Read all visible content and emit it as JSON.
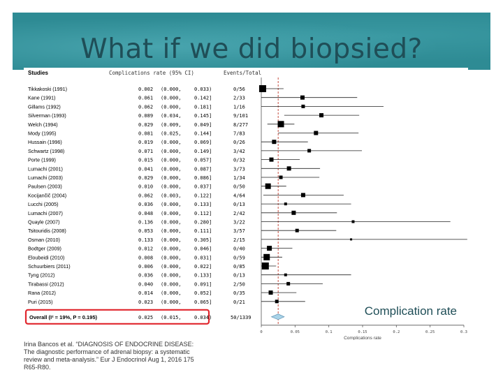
{
  "slide": {
    "title": "What if we did biopsied?",
    "caption": "Complication rate",
    "citation": "Irina Bancos et al. “DIAGNOSIS OF ENDOCRINE DISEASE: The diagnostic performance of adrenal biopsy: a systematic review and meta-analysis.” Eur J Endocrinol Aug 1, 2016 175 R65-R80."
  },
  "forest": {
    "col_studies": "Studies",
    "col_rate": "Complications rate (95% CI)",
    "col_events": "Events/Total",
    "rows": [
      {
        "study": "Tikkakoski (1991)",
        "rate": "0.002",
        "lo": "(0.000,",
        "hi": "0.033)",
        "events": "0/56",
        "est": 0.002,
        "size": 5
      },
      {
        "study": "Kane (1991)",
        "rate": "0.061",
        "lo": "(0.000,",
        "hi": "0.142]",
        "events": "2/33",
        "est": 0.061,
        "size": 3
      },
      {
        "study": "Gillams (1992)",
        "rate": "0.062",
        "lo": "(0.000,",
        "hi": "0.181]",
        "events": "1/16",
        "est": 0.062,
        "size": 2.5
      },
      {
        "study": "Silverman (1993)",
        "rate": "0.089",
        "lo": "(0.034,",
        "hi": "0.145]",
        "events": "9/101",
        "est": 0.089,
        "size": 3
      },
      {
        "study": "Welch (1994)",
        "rate": "0.029",
        "lo": "(0.009,",
        "hi": "0.049]",
        "events": "8/277",
        "est": 0.029,
        "size": 4.5
      },
      {
        "study": "Mody (1995)",
        "rate": "0.081",
        "lo": "(0.025,",
        "hi": "0.144]",
        "events": "7/83",
        "est": 0.081,
        "size": 3
      },
      {
        "study": "Hussain (1996)",
        "rate": "0.019",
        "lo": "(0.000,",
        "hi": "0.069]",
        "events": "0/26",
        "est": 0.019,
        "size": 3
      },
      {
        "study": "Schwartz (1998)",
        "rate": "0.071",
        "lo": "(0.000,",
        "hi": "0.149]",
        "events": "3/42",
        "est": 0.071,
        "size": 2.5
      },
      {
        "study": "Porte (1999)",
        "rate": "0.015",
        "lo": "(0.000,",
        "hi": "0.057]",
        "events": "0/32",
        "est": 0.015,
        "size": 3
      },
      {
        "study": "Lumachi (2001)",
        "rate": "0.041",
        "lo": "(0.000,",
        "hi": "0.087]",
        "events": "3/73",
        "est": 0.041,
        "size": 3
      },
      {
        "study": "Lumachi (2003)",
        "rate": "0.029",
        "lo": "(0.000,",
        "hi": "0.086]",
        "events": "1/34",
        "est": 0.029,
        "size": 2.5
      },
      {
        "study": "Paulsen (2003)",
        "rate": "0.010",
        "lo": "(0.000,",
        "hi": "0.037]",
        "events": "0/50",
        "est": 0.01,
        "size": 4
      },
      {
        "study": "Kocijančič (2004)",
        "rate": "0.062",
        "lo": "(0.003,",
        "hi": "0.122]",
        "events": "4/64",
        "est": 0.062,
        "size": 3
      },
      {
        "study": "Lucchi (2005)",
        "rate": "0.036",
        "lo": "(0.000,",
        "hi": "0.133]",
        "events": "0/13",
        "est": 0.036,
        "size": 2
      },
      {
        "study": "Lumachi (2007)",
        "rate": "0.048",
        "lo": "(0.000,",
        "hi": "0.112]",
        "events": "2/42",
        "est": 0.048,
        "size": 3
      },
      {
        "study": "Quayle (2007)",
        "rate": "0.136",
        "lo": "(0.000,",
        "hi": "0.280]",
        "events": "3/22",
        "est": 0.136,
        "size": 2
      },
      {
        "study": "Tsitouridis (2008)",
        "rate": "0.053",
        "lo": "(0.000,",
        "hi": "0.111]",
        "events": "3/57",
        "est": 0.053,
        "size": 2.5
      },
      {
        "study": "Osman (2010)",
        "rate": "0.133",
        "lo": "(0.000,",
        "hi": "0.305]",
        "events": "2/15",
        "est": 0.133,
        "size": 1.5
      },
      {
        "study": "Bodtger (2009)",
        "rate": "0.012",
        "lo": "(0.000,",
        "hi": "0.046]",
        "events": "0/40",
        "est": 0.012,
        "size": 3.5
      },
      {
        "study": "Eloubeidi (2010)",
        "rate": "0.008",
        "lo": "(0.000,",
        "hi": "0.031]",
        "events": "0/59",
        "est": 0.008,
        "size": 4.5
      },
      {
        "study": "Schuurbiers (2011)",
        "rate": "0.006",
        "lo": "(0.000,",
        "hi": "0.022]",
        "events": "0/85",
        "est": 0.006,
        "size": 5
      },
      {
        "study": "Tyng (2012)",
        "rate": "0.036",
        "lo": "(0.000,",
        "hi": "0.133]",
        "events": "0/13",
        "est": 0.036,
        "size": 2
      },
      {
        "study": "Tirabassi (2012)",
        "rate": "0.040",
        "lo": "(0.000,",
        "hi": "0.091]",
        "events": "2/50",
        "est": 0.04,
        "size": 2.5
      },
      {
        "study": "Rana (2012)",
        "rate": "0.014",
        "lo": "(0.000,",
        "hi": "0.052]",
        "events": "0/35",
        "est": 0.014,
        "size": 3
      },
      {
        "study": "Puri (2015)",
        "rate": "0.023",
        "lo": "(0.000,",
        "hi": "0.065]",
        "events": "0/21",
        "est": 0.023,
        "size": 2.5
      }
    ],
    "overall": {
      "label": "Overall (I² = 19%, P = 0.195)",
      "rate": "0.025",
      "lo": "(0.015,",
      "hi": "0.034)",
      "events": "50/1339",
      "est": 0.025
    },
    "axis": {
      "label": "Complications rate",
      "ticks": [
        "0",
        "0.05",
        "0.1",
        "0.15",
        "0.2",
        "0.25",
        "0.3"
      ],
      "min": 0,
      "max": 0.3
    },
    "colors": {
      "highlight": "#e0262d",
      "overall_diamond": "#a9d3e8",
      "ref_line": "#c0392b"
    }
  }
}
